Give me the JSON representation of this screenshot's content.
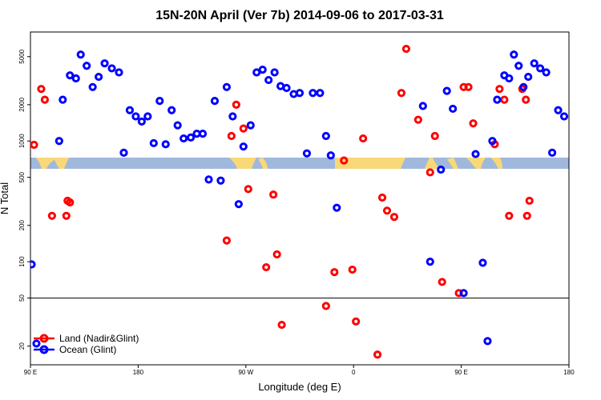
{
  "chart_data": {
    "type": "scatter",
    "title": "15N-20N April (Ver 7b)   2014-09-06 to 2017-03-31",
    "xlabel": "Longitude (deg E)",
    "ylabel": "N Total",
    "x_scale": "linear",
    "y_scale": "log",
    "xlim_cyclic_offset_deg": [
      90,
      540
    ],
    "ylim": [
      14,
      8000
    ],
    "x_ticks": [
      {
        "label": "90 E",
        "value": 90
      },
      {
        "label": "180",
        "value": 180
      },
      {
        "label": "90 W",
        "value": 270
      },
      {
        "label": "0",
        "value": 360
      },
      {
        "label": "90 E",
        "value": 450
      },
      {
        "label": "180",
        "value": 540
      }
    ],
    "y_ticks": [
      {
        "label": "20",
        "value": 20
      },
      {
        "label": "50",
        "value": 50
      },
      {
        "label": "100",
        "value": 100
      },
      {
        "label": "200",
        "value": 200
      },
      {
        "label": "500",
        "value": 500
      },
      {
        "label": "1000",
        "value": 1000
      },
      {
        "label": "2000",
        "value": 2000
      },
      {
        "label": "5000",
        "value": 5000
      }
    ],
    "reference_lines_y": [
      50
    ],
    "map_strip": {
      "y_range": [
        500,
        590
      ],
      "ocean_color": "#a0b8dc",
      "land_color": "#f8d878"
    },
    "legend_position": "bottom-left",
    "series": [
      {
        "name": "Land (Nadir&Glint)",
        "color": "#ff0000",
        "points": [
          [
            93,
            930
          ],
          [
            99,
            2700
          ],
          [
            102,
            2200
          ],
          [
            108,
            240
          ],
          [
            120,
            240
          ],
          [
            121,
            320
          ],
          [
            123,
            310
          ],
          [
            254,
            150
          ],
          [
            258,
            1100
          ],
          [
            262,
            2000
          ],
          [
            268,
            1270
          ],
          [
            272,
            400
          ],
          [
            287,
            90
          ],
          [
            293,
            360
          ],
          [
            296,
            115
          ],
          [
            300,
            30
          ],
          [
            337,
            43
          ],
          [
            344,
            82
          ],
          [
            352,
            690
          ],
          [
            359,
            86
          ],
          [
            362,
            32
          ],
          [
            368,
            1050
          ],
          [
            380,
            17
          ],
          [
            384,
            340
          ],
          [
            388,
            265
          ],
          [
            394,
            235
          ],
          [
            400,
            2500
          ],
          [
            404,
            5800
          ],
          [
            414,
            1500
          ],
          [
            424,
            550
          ],
          [
            428,
            1100
          ],
          [
            434,
            68
          ],
          [
            448,
            55
          ],
          [
            452,
            2800
          ],
          [
            456,
            2800
          ],
          [
            460,
            1400
          ],
          [
            478,
            940
          ],
          [
            482,
            2700
          ],
          [
            486,
            2200
          ],
          [
            490,
            240
          ],
          [
            501,
            2700
          ],
          [
            504,
            2200
          ],
          [
            505,
            240
          ],
          [
            507,
            320
          ]
        ]
      },
      {
        "name": "Ocean (Glint)",
        "color": "#0000ff",
        "points": [
          [
            91,
            95
          ],
          [
            95,
            21
          ],
          [
            114,
            1000
          ],
          [
            117,
            2200
          ],
          [
            123,
            3500
          ],
          [
            128,
            3300
          ],
          [
            132,
            5200
          ],
          [
            137,
            4200
          ],
          [
            142,
            2800
          ],
          [
            147,
            3400
          ],
          [
            152,
            4400
          ],
          [
            158,
            4000
          ],
          [
            164,
            3700
          ],
          [
            168,
            800
          ],
          [
            173,
            1800
          ],
          [
            178,
            1600
          ],
          [
            183,
            1450
          ],
          [
            188,
            1600
          ],
          [
            193,
            960
          ],
          [
            198,
            2150
          ],
          [
            203,
            940
          ],
          [
            208,
            1800
          ],
          [
            213,
            1350
          ],
          [
            218,
            1050
          ],
          [
            224,
            1070
          ],
          [
            229,
            1150
          ],
          [
            234,
            1150
          ],
          [
            239,
            480
          ],
          [
            244,
            2150
          ],
          [
            249,
            470
          ],
          [
            254,
            2800
          ],
          [
            259,
            1600
          ],
          [
            264,
            300
          ],
          [
            268,
            900
          ],
          [
            274,
            1350
          ],
          [
            279,
            3700
          ],
          [
            284,
            3900
          ],
          [
            289,
            3200
          ],
          [
            294,
            3700
          ],
          [
            299,
            2850
          ],
          [
            304,
            2750
          ],
          [
            310,
            2450
          ],
          [
            315,
            2500
          ],
          [
            321,
            790
          ],
          [
            326,
            2500
          ],
          [
            332,
            2500
          ],
          [
            337,
            1100
          ],
          [
            341,
            760
          ],
          [
            346,
            280
          ],
          [
            418,
            1950
          ],
          [
            424,
            100
          ],
          [
            433,
            580
          ],
          [
            438,
            2600
          ],
          [
            443,
            1850
          ],
          [
            452,
            55
          ],
          [
            462,
            780
          ],
          [
            468,
            98
          ],
          [
            472,
            22
          ],
          [
            476,
            1000
          ],
          [
            480,
            2200
          ],
          [
            486,
            3500
          ],
          [
            490,
            3300
          ],
          [
            494,
            5200
          ],
          [
            498,
            4200
          ],
          [
            502,
            2800
          ],
          [
            506,
            3400
          ],
          [
            511,
            4400
          ],
          [
            516,
            4000
          ],
          [
            521,
            3700
          ],
          [
            526,
            800
          ],
          [
            531,
            1800
          ],
          [
            536,
            1600
          ]
        ]
      }
    ]
  }
}
